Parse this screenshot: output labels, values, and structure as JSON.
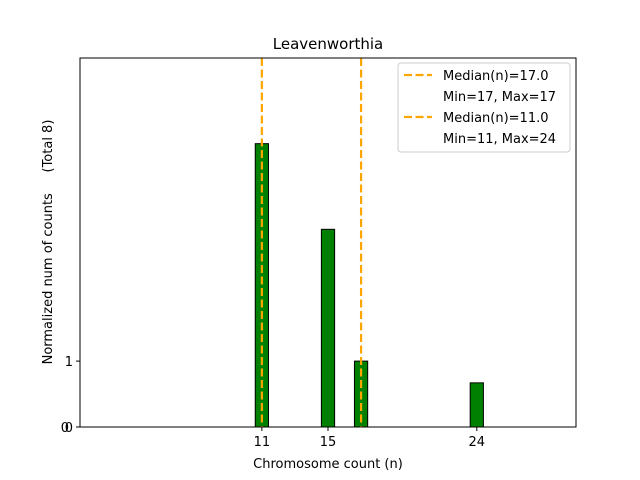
{
  "chart_data": {
    "type": "bar",
    "title": "Leavenworthia",
    "xlabel": "Chromosome count (n)",
    "ylabel": "Normalized num of counts     (Total 8)",
    "xlim": [
      0,
      30
    ],
    "ylim": [
      0,
      5.6
    ],
    "x_ticks": [
      11,
      15,
      24
    ],
    "y_ticks": [
      0,
      1
    ],
    "y_tick_labels_left": [
      "0",
      "1"
    ],
    "y_tick_labels_left_outer": [
      "0"
    ],
    "bar_width": 0.8,
    "bar_color": "#008000",
    "bar_edge_color": "#000000",
    "bars": [
      {
        "x": 11,
        "value": 4.3
      },
      {
        "x": 15,
        "value": 3.0
      },
      {
        "x": 17,
        "value": 1.0
      },
      {
        "x": 24,
        "value": 0.67
      }
    ],
    "median_lines": [
      {
        "x": 17.0,
        "label": "Median(n)=17.0",
        "range_label": "Min=17, Max=17",
        "color": "#FFA500"
      },
      {
        "x": 11.0,
        "label": "Median(n)=11.0",
        "range_label": "Min=11, Max=24",
        "color": "#FFA500"
      }
    ],
    "legend_position": "top-right"
  }
}
